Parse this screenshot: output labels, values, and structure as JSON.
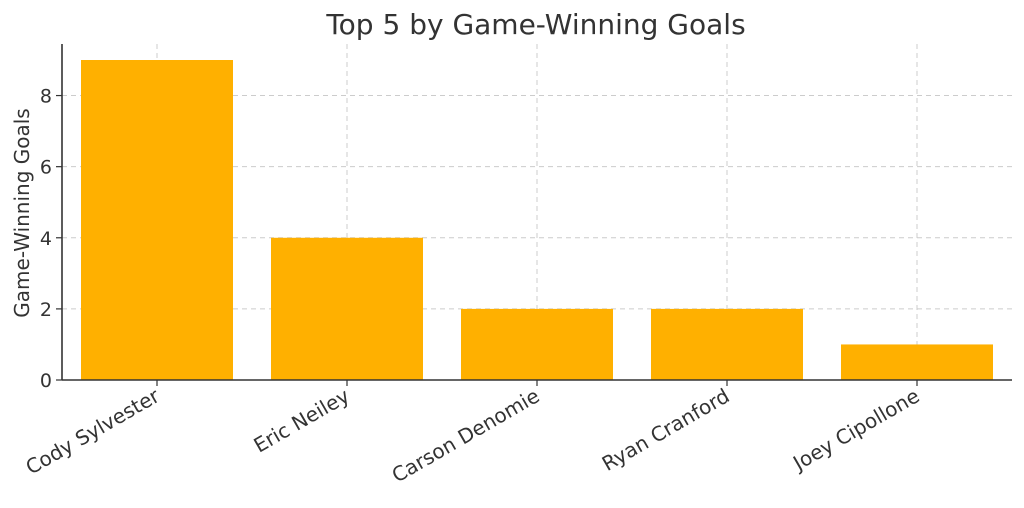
{
  "chart_data": {
    "type": "bar",
    "title": "Top 5 by Game-Winning Goals",
    "xlabel": "",
    "ylabel": "Game-Winning Goals",
    "categories": [
      "Cody Sylvester",
      "Eric Neiley",
      "Carson Denomie",
      "Ryan Cranford",
      "Joey Cipollone"
    ],
    "values": [
      9,
      4,
      2,
      2,
      1
    ],
    "ylim": [
      0,
      9.45
    ],
    "yticks": [
      0,
      2,
      4,
      6,
      8
    ],
    "grid": true,
    "bar_color": "#FFB000"
  }
}
